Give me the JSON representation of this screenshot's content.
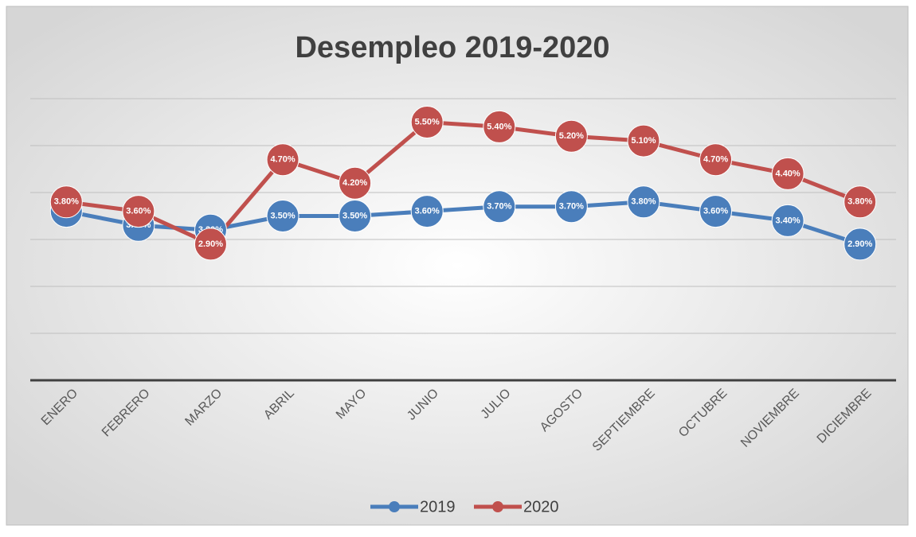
{
  "chart_data": {
    "type": "line",
    "title": "Desempleo 2019-2020",
    "categories": [
      "ENERO",
      "FEBRERO",
      "MARZO",
      "ABRIL",
      "MAYO",
      "JUNIO",
      "JULIO",
      "AGOSTO",
      "SEPTIEMBRE",
      "OCTUBRE",
      "NOVIEMBRE",
      "DICIEMBRE"
    ],
    "series": [
      {
        "name": "2019",
        "color": "#4a7ebb",
        "values": [
          3.6,
          3.3,
          3.2,
          3.5,
          3.5,
          3.6,
          3.7,
          3.7,
          3.8,
          3.6,
          3.4,
          2.9
        ],
        "value_labels": [
          "3.60%",
          "3.30%",
          "3.20%",
          "3.50%",
          "3.50%",
          "3.60%",
          "3.70%",
          "3.70%",
          "3.80%",
          "3.60%",
          "3.40%",
          "2.90%"
        ]
      },
      {
        "name": "2020",
        "color": "#c0504d",
        "values": [
          3.8,
          3.6,
          2.9,
          4.7,
          4.2,
          5.5,
          5.4,
          5.2,
          5.1,
          4.7,
          4.4,
          3.8
        ],
        "value_labels": [
          "3.80%",
          "3.60%",
          "2.90%",
          "4.70%",
          "4.20%",
          "5.50%",
          "5.40%",
          "5.20%",
          "5.10%",
          "4.70%",
          "4.40%",
          "3.80%"
        ]
      }
    ],
    "ylim": [
      0,
      6
    ],
    "yticks": [
      0,
      1,
      2,
      3,
      4,
      5,
      6
    ],
    "grid": true,
    "legend": "bottom"
  }
}
